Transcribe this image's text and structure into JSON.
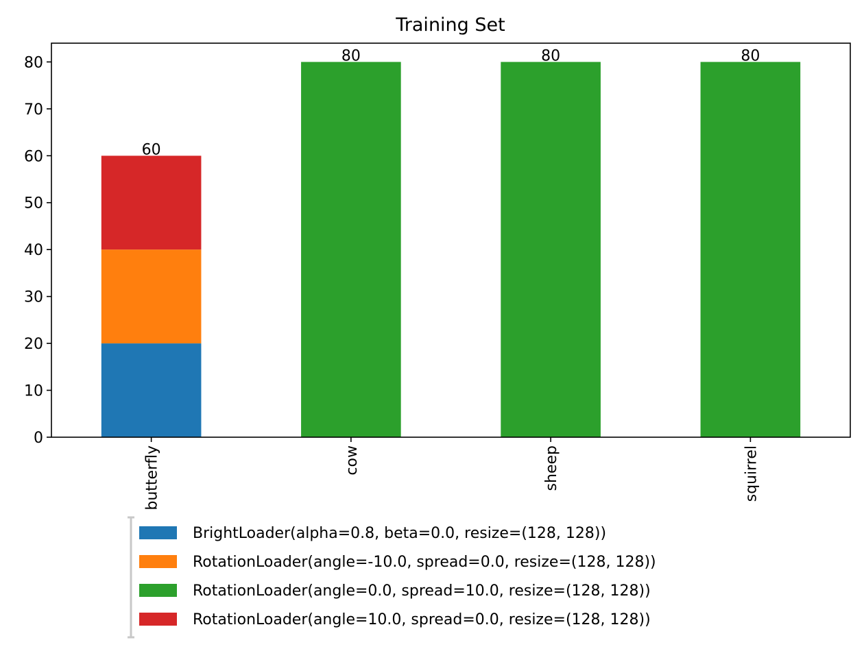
{
  "chart_data": {
    "type": "bar",
    "stacked": true,
    "title": "Training Set",
    "xlabel": "",
    "ylabel": "",
    "categories": [
      "butterfly",
      "cow",
      "sheep",
      "squirrel"
    ],
    "ylim": [
      0,
      84
    ],
    "yticks": [
      0,
      10,
      20,
      30,
      40,
      50,
      60,
      70,
      80
    ],
    "grid": false,
    "legend_position": "bottom",
    "series": [
      {
        "name": "BrightLoader(alpha=0.8, beta=0.0, resize=(128, 128))",
        "color": "#1f77b4",
        "values": [
          20,
          0,
          0,
          0
        ]
      },
      {
        "name": "RotationLoader(angle=-10.0, spread=0.0, resize=(128, 128))",
        "color": "#ff7f0e",
        "values": [
          20,
          0,
          0,
          0
        ]
      },
      {
        "name": "RotationLoader(angle=0.0, spread=10.0, resize=(128, 128))",
        "color": "#2ca02c",
        "values": [
          0,
          80,
          80,
          80
        ]
      },
      {
        "name": "RotationLoader(angle=10.0, spread=0.0, resize=(128, 128))",
        "color": "#d62728",
        "values": [
          20,
          0,
          0,
          0
        ]
      }
    ],
    "totals": [
      60,
      80,
      80,
      80
    ]
  }
}
